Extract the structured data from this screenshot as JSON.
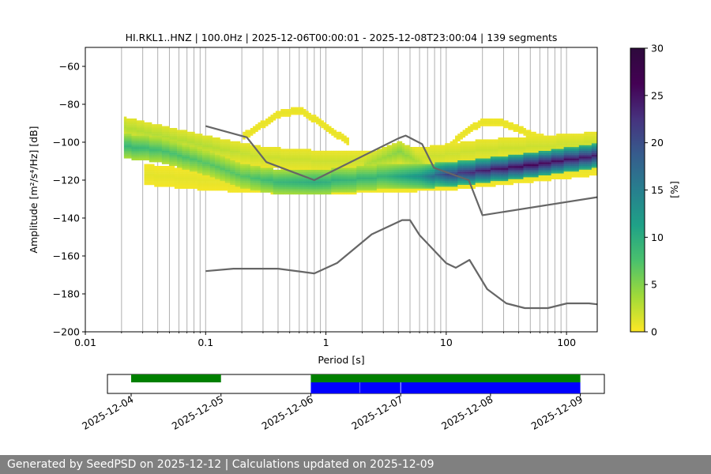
{
  "chart_data": [
    {
      "type": "heatmap",
      "title": "HI.RKL1..HNZ | 100.0Hz | 2025-12-06T00:00:01 - 2025-12-08T23:00:04 | 139 segments",
      "xlabel": "Period [s]",
      "ylabel": "Amplitude [m²/s⁴/Hz] [dB]",
      "xscale": "log",
      "xlim": [
        0.01,
        180
      ],
      "ylim": [
        -200,
        -50
      ],
      "x_tick_labels": [
        "0.01",
        "0.1",
        "1",
        "10",
        "100"
      ],
      "y_ticks": [
        -60,
        -80,
        -100,
        -120,
        -140,
        -160,
        -180,
        -200
      ],
      "grid": "vertical, minor log ticks",
      "colormap": "viridis reversed (yellow low, purple high)",
      "colorbar": {
        "label": "[%]",
        "range": [
          0,
          30
        ],
        "ticks": [
          0,
          5,
          10,
          15,
          20,
          25,
          30
        ]
      },
      "density_bands": [
        {
          "name": "main",
          "points": [
            [
              0.02,
              -102,
              9
            ],
            [
              0.04,
              -104,
              8
            ],
            [
              0.1,
              -111,
              7
            ],
            [
              0.2,
              -118,
              7
            ],
            [
              0.4,
              -121,
              9
            ],
            [
              0.8,
              -121,
              10
            ],
            [
              1.5,
              -120,
              9
            ],
            [
              3,
              -118,
              9
            ],
            [
              6,
              -118,
              13
            ],
            [
              10,
              -117,
              21
            ],
            [
              20,
              -115,
              24
            ],
            [
              50,
              -112,
              26
            ],
            [
              180,
              -107,
              24
            ]
          ]
        },
        {
          "name": "spread-high",
          "points": [
            [
              0.02,
              -92,
              3
            ],
            [
              0.1,
              -102,
              3
            ],
            [
              0.3,
              -108,
              2
            ],
            [
              1,
              -110,
              2
            ],
            [
              3,
              -110,
              2
            ],
            [
              6,
              -108,
              2
            ],
            [
              20,
              -104,
              2
            ],
            [
              60,
              -102,
              2
            ],
            [
              180,
              -100,
              2
            ]
          ]
        },
        {
          "name": "microseism-hump",
          "points": [
            [
              2,
              -112,
              3
            ],
            [
              3,
              -108,
              4
            ],
            [
              4,
              -105,
              5
            ],
            [
              5,
              -108,
              4
            ],
            [
              7,
              -114,
              2
            ]
          ]
        },
        {
          "name": "spread-low",
          "points": [
            [
              0.03,
              -117,
              1
            ],
            [
              0.1,
              -120,
              1
            ],
            [
              0.5,
              -122,
              1
            ],
            [
              1,
              -122,
              1
            ],
            [
              3,
              -121,
              1
            ],
            [
              10,
              -120,
              1
            ],
            [
              30,
              -117,
              1
            ],
            [
              180,
              -112,
              1
            ]
          ]
        },
        {
          "name": "arc-1",
          "points": [
            [
              0.2,
              -97,
              1
            ],
            [
              0.4,
              -85,
              1
            ],
            [
              0.6,
              -83,
              1
            ],
            [
              1.0,
              -92,
              1
            ],
            [
              1.5,
              -100,
              1
            ]
          ]
        },
        {
          "name": "arc-2",
          "points": [
            [
              10,
              -103,
              1
            ],
            [
              15,
              -93,
              1
            ],
            [
              20,
              -89,
              1
            ],
            [
              30,
              -90,
              1
            ],
            [
              50,
              -96,
              1
            ],
            [
              100,
              -102,
              1
            ],
            [
              180,
              -104,
              1
            ]
          ]
        }
      ],
      "series": [
        {
          "name": "NHNM",
          "points": [
            [
              0.1,
              -91.5
            ],
            [
              0.22,
              -97.4
            ],
            [
              0.32,
              -110.5
            ],
            [
              0.8,
              -120
            ],
            [
              4.0,
              -98
            ],
            [
              4.6,
              -96.5
            ],
            [
              6.3,
              -101
            ],
            [
              7.9,
              -113.5
            ],
            [
              15.4,
              -120
            ],
            [
              20,
              -138.5
            ],
            [
              180,
              -129
            ]
          ]
        },
        {
          "name": "NLNM",
          "points": [
            [
              0.1,
              -168
            ],
            [
              0.17,
              -166.7
            ],
            [
              0.4,
              -166.7
            ],
            [
              0.8,
              -169.2
            ],
            [
              1.24,
              -163.7
            ],
            [
              2.4,
              -148.6
            ],
            [
              4.3,
              -141.1
            ],
            [
              5,
              -141.1
            ],
            [
              6,
              -149
            ],
            [
              10,
              -163.8
            ],
            [
              12,
              -166.2
            ],
            [
              15.6,
              -162.1
            ],
            [
              21.9,
              -177.5
            ],
            [
              31.6,
              -185
            ],
            [
              45,
              -187.5
            ],
            [
              70,
              -187.5
            ],
            [
              101,
              -185
            ],
            [
              154,
              -185
            ],
            [
              180,
              -185.5
            ]
          ]
        }
      ]
    },
    {
      "type": "timeline",
      "x_tick_labels": [
        "2025-12-04",
        "2025-12-05",
        "2025-12-06",
        "2025-12-07",
        "2025-12-08",
        "2025-12-09"
      ],
      "xlim": [
        "2025-12-03T17:40",
        "2025-12-09T06:25"
      ],
      "available_data": [
        [
          "2025-12-04T00:00",
          "2025-12-05T00:00"
        ],
        [
          "2025-12-06T00:00",
          "2025-12-09T00:00"
        ]
      ],
      "used_segments": [
        [
          "2025-12-06T00:00",
          "2025-12-06T13:00"
        ],
        [
          "2025-12-06T13:05",
          "2025-12-06T23:55"
        ],
        [
          "2025-12-07T00:05",
          "2025-12-09T00:00"
        ]
      ],
      "available_color": "#008000",
      "used_color": "#0000ff"
    }
  ],
  "footer": "Generated by SeedPSD on 2025-12-12 | Calculations updated on 2025-12-09"
}
